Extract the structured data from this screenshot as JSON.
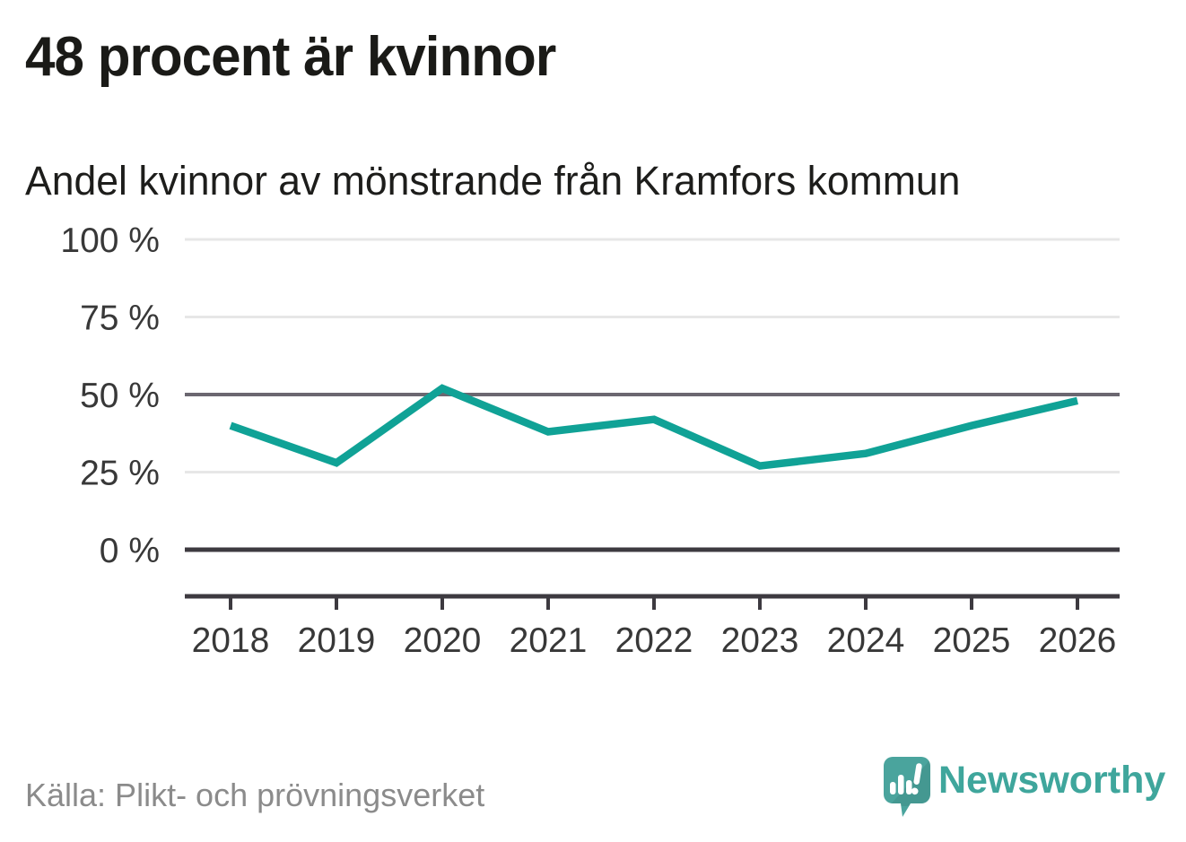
{
  "title": "48 procent är kvinnor",
  "subtitle": "Andel kvinnor av mönstrande från Kramfors kommun",
  "source": "Källa: Plikt- och prövningsverket",
  "brand": {
    "name": "Newsworthy",
    "icon": "speech-bubble-bar-chart-icon"
  },
  "colors": {
    "line": "#10a296",
    "grid_light": "#e7e7e7",
    "grid_mid": "#6b6770",
    "grid_dark": "#3d3a40",
    "axis_text": "#383838",
    "heading_text": "#1a1a17",
    "source_text": "#8b8b8b",
    "brand_teal": "#3fa69c",
    "logo_bubble": "#4aa49d"
  },
  "chart_data": {
    "type": "line",
    "title": "48 procent är kvinnor",
    "subtitle": "Andel kvinnor av mönstrande från Kramfors kommun",
    "x": [
      "2018",
      "2019",
      "2020",
      "2021",
      "2022",
      "2023",
      "2024",
      "2025",
      "2026"
    ],
    "series": [
      {
        "name": "Andel kvinnor av mönstrande, Kramfors kommun",
        "values": [
          40,
          28,
          52,
          38,
          42,
          27,
          31,
          40,
          48
        ]
      }
    ],
    "unit": "%",
    "ylim": [
      0,
      100
    ],
    "yticks": [
      0,
      25,
      50,
      75,
      100
    ],
    "ytick_labels": [
      "0 %",
      "25 %",
      "50 %",
      "75 %",
      "100 %"
    ],
    "xlabel": "",
    "ylabel": "",
    "grid": "horizontal",
    "legend": "none",
    "emphasized_gridlines": [
      50
    ],
    "baseline_gridline": 0
  }
}
